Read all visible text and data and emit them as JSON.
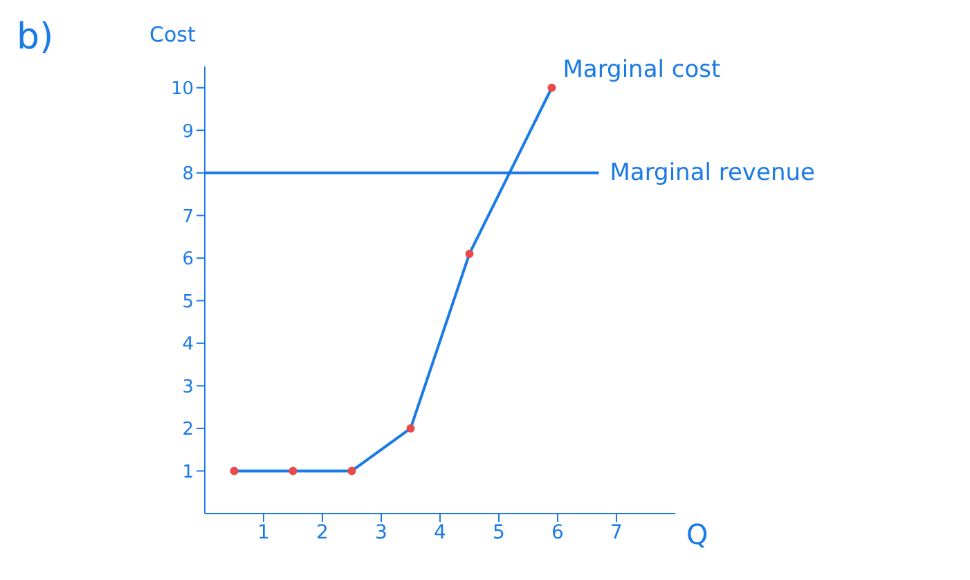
{
  "chart_data": {
    "type": "line",
    "title": "b)",
    "ylabel": "Cost",
    "xlabel": "Q",
    "xlim": [
      0,
      8
    ],
    "xticks": [
      1,
      2,
      3,
      4,
      5,
      6,
      7
    ],
    "ylim": [
      0,
      10.5
    ],
    "yticks": [
      1,
      2,
      3,
      4,
      5,
      6,
      7,
      8,
      9,
      10
    ],
    "grid": false,
    "legend": false,
    "marker": "circle",
    "line_style": "solid",
    "series": [
      {
        "name": "Marginal cost",
        "color": "#1a7ae6",
        "x": [
          0.5,
          1.5,
          2.5,
          3.5,
          4.5,
          5.9
        ],
        "values": [
          1,
          1,
          1,
          2,
          6.1,
          10
        ]
      },
      {
        "name": "Marginal revenue",
        "color": "#1a7ae6",
        "x": [
          0,
          6.7
        ],
        "values": [
          8,
          8
        ],
        "marker": "none"
      }
    ]
  }
}
